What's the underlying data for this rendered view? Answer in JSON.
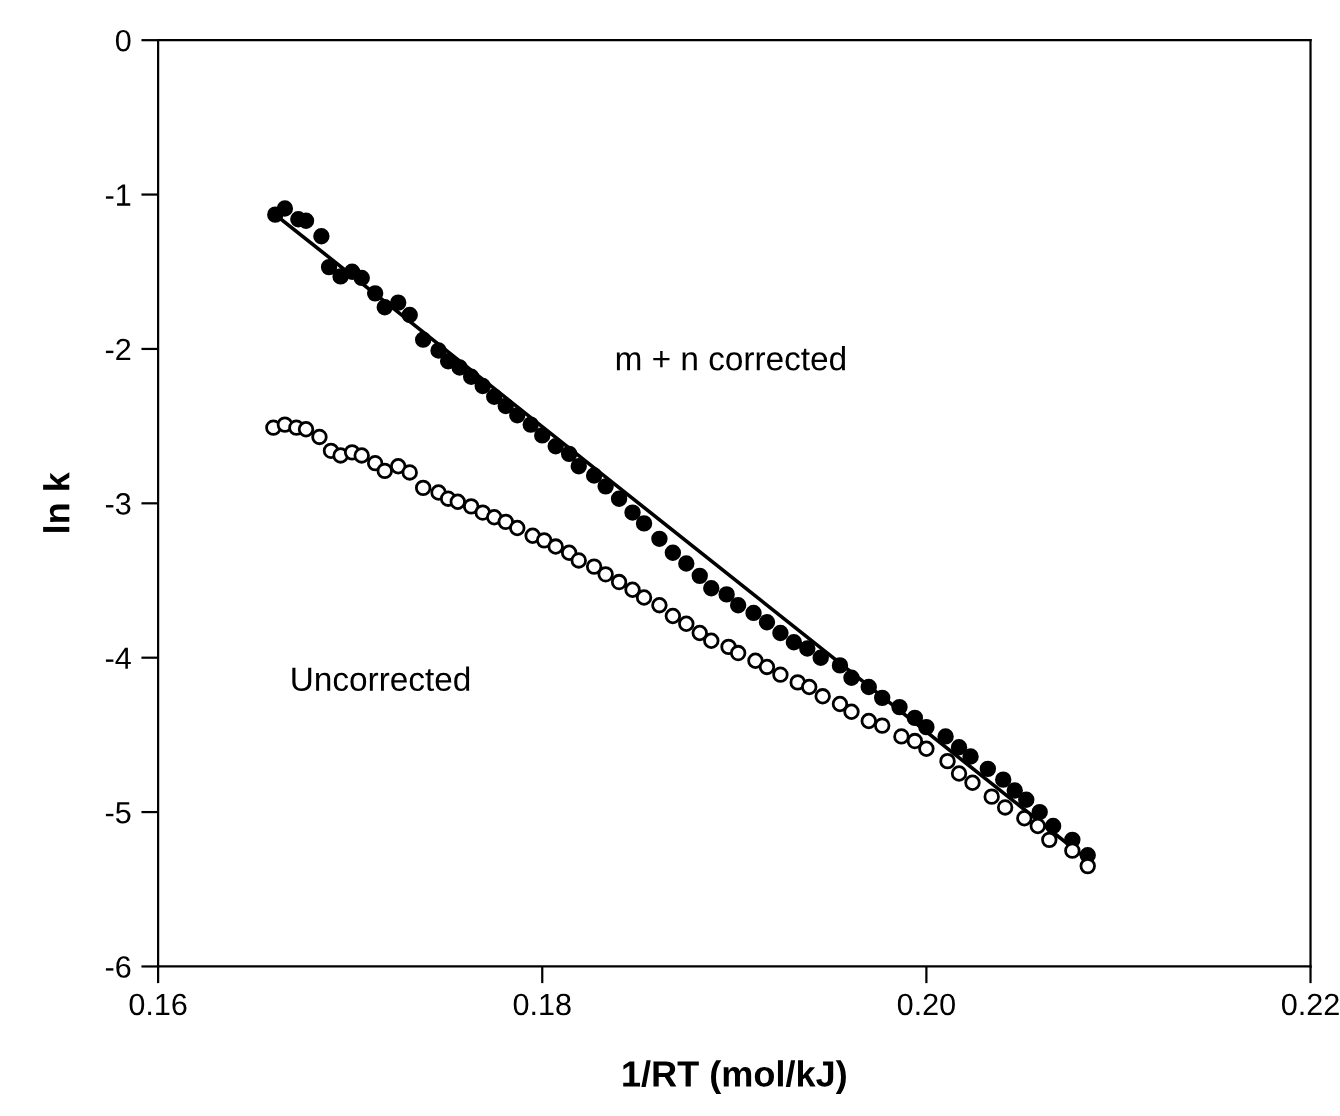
{
  "chart_data": {
    "type": "scatter",
    "xlabel": "1/RT (mol/kJ)",
    "ylabel": "ln k",
    "xlim": [
      0.16,
      0.22
    ],
    "ylim": [
      -6,
      0
    ],
    "xticks": [
      0.16,
      0.18,
      {
        "value": 0.2,
        "label": "0.20"
      },
      0.22
    ],
    "yticks": [
      -6,
      -5,
      -4,
      -3,
      -2,
      -1,
      0
    ],
    "marker": "circle",
    "grid": false,
    "legend": false,
    "series": [
      {
        "color": "#000000",
        "x": [
          0.1661,
          0.1666,
          0.1673,
          0.1677,
          0.1685,
          0.1689,
          0.1695,
          0.1701,
          0.1706,
          0.1713,
          0.1718,
          0.1725,
          0.1731,
          0.1738,
          0.1746,
          0.1751,
          0.1757,
          0.1763,
          0.1769,
          0.1775,
          0.1781,
          0.1787,
          0.1794,
          0.18,
          0.1807,
          0.1814,
          0.1819,
          0.1827,
          0.1833,
          0.184,
          0.1847,
          0.1853,
          0.1861,
          0.1868,
          0.1875,
          0.1882,
          0.1888,
          0.1896,
          0.1902,
          0.191,
          0.1917,
          0.1924,
          0.1931,
          0.1938,
          0.1945,
          0.1955,
          0.1961,
          0.197,
          0.1977,
          0.1986,
          0.1994,
          0.2,
          0.201,
          0.2017,
          0.2023,
          0.2032,
          0.204,
          0.2046,
          0.2052,
          0.2059,
          0.2066,
          0.2076,
          0.2084
        ],
        "values": [
          -1.13,
          -1.09,
          -1.16,
          -1.17,
          -1.27,
          -1.47,
          -1.53,
          -1.5,
          -1.54,
          -1.64,
          -1.73,
          -1.7,
          -1.78,
          -1.94,
          -2.01,
          -2.08,
          -2.12,
          -2.18,
          -2.24,
          -2.31,
          -2.37,
          -2.43,
          -2.49,
          -2.56,
          -2.63,
          -2.68,
          -2.76,
          -2.82,
          -2.89,
          -2.97,
          -3.06,
          -3.13,
          -3.23,
          -3.32,
          -3.39,
          -3.47,
          -3.55,
          -3.59,
          -3.66,
          -3.71,
          -3.77,
          -3.84,
          -3.9,
          -3.94,
          -4.0,
          -4.05,
          -4.13,
          -4.19,
          -4.26,
          -4.32,
          -4.39,
          -4.45,
          -4.51,
          -4.58,
          -4.64,
          -4.72,
          -4.79,
          -4.86,
          -4.92,
          -5.0,
          -5.09,
          -5.18,
          -5.28
        ]
      },
      {
        "color": "#ffffff",
        "x": [
          0.166,
          0.1666,
          0.1672,
          0.1677,
          0.1684,
          0.169,
          0.1695,
          0.1701,
          0.1706,
          0.1713,
          0.1718,
          0.1725,
          0.1731,
          0.1738,
          0.1746,
          0.1751,
          0.1756,
          0.1763,
          0.1769,
          0.1775,
          0.1781,
          0.1787,
          0.1795,
          0.1801,
          0.1807,
          0.1814,
          0.1819,
          0.1827,
          0.1833,
          0.184,
          0.1847,
          0.1853,
          0.1861,
          0.1868,
          0.1875,
          0.1882,
          0.1888,
          0.1897,
          0.1902,
          0.1911,
          0.1917,
          0.1924,
          0.1933,
          0.1939,
          0.1946,
          0.1955,
          0.1961,
          0.197,
          0.1977,
          0.1987,
          0.1994,
          0.2,
          0.2011,
          0.2017,
          0.2024,
          0.2034,
          0.2041,
          0.2051,
          0.2058,
          0.2064,
          0.2076,
          0.2084
        ],
        "values": [
          -2.51,
          -2.49,
          -2.51,
          -2.52,
          -2.57,
          -2.66,
          -2.69,
          -2.67,
          -2.69,
          -2.74,
          -2.79,
          -2.76,
          -2.8,
          -2.9,
          -2.93,
          -2.97,
          -2.99,
          -3.02,
          -3.06,
          -3.09,
          -3.12,
          -3.16,
          -3.21,
          -3.24,
          -3.28,
          -3.32,
          -3.37,
          -3.41,
          -3.46,
          -3.51,
          -3.56,
          -3.61,
          -3.66,
          -3.73,
          -3.78,
          -3.84,
          -3.89,
          -3.93,
          -3.97,
          -4.02,
          -4.06,
          -4.11,
          -4.16,
          -4.19,
          -4.25,
          -4.3,
          -4.35,
          -4.41,
          -4.44,
          -4.51,
          -4.54,
          -4.59,
          -4.67,
          -4.75,
          -4.81,
          -4.9,
          -4.97,
          -5.04,
          -5.09,
          -5.18,
          -5.25,
          -5.35
        ]
      },
      {
        "type": "line",
        "color": "#000000",
        "line_style": "solid",
        "marker": "none",
        "x": [
          0.1661,
          0.2081
        ],
        "values": [
          -1.13,
          -5.28
        ]
      }
    ],
    "annotations": [
      "m + n corrected",
      "Uncorrected"
    ]
  }
}
